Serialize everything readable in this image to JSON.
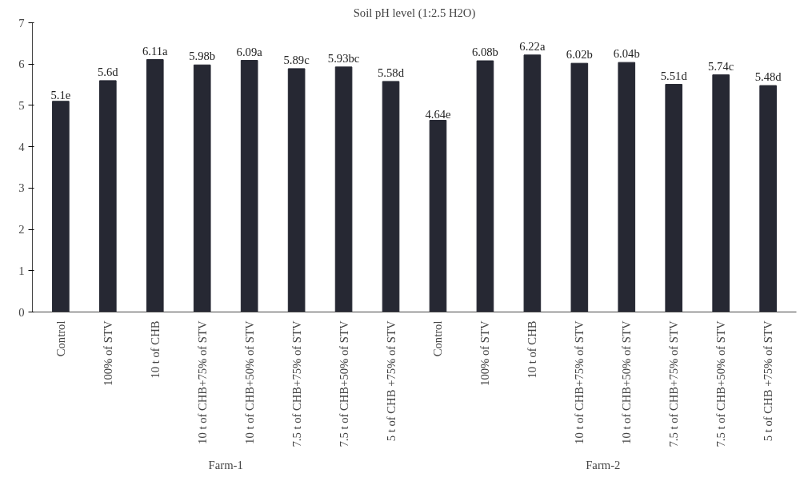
{
  "chart_data": {
    "type": "bar",
    "title": "Soil pH level (1:2.5 H2O)",
    "categories": [
      "Control",
      "100% of STV",
      "10 t of CHB",
      "10 t of CHB+75% of STV",
      "10 t of CHB+50% of STV",
      "7.5 t of CHB+75% of STV",
      "7.5 t of CHB+50% of STV",
      "5 t of CHB +75% of STV",
      "Control",
      "100% of STV",
      "10 t of CHB",
      "10 t of CHB+75% of STV",
      "10 t of CHB+50% of STV",
      "7.5 t of CHB+75% of STV",
      "7.5 t of CHB+50% of STV",
      "5 t of CHB +75% of STV"
    ],
    "values": [
      5.1,
      5.6,
      6.11,
      5.98,
      6.09,
      5.89,
      5.93,
      5.58,
      4.64,
      6.08,
      6.22,
      6.02,
      6.04,
      5.51,
      5.74,
      5.48
    ],
    "value_labels": [
      "5.1e",
      "5.6d",
      "6.11a",
      "5.98b",
      "6.09a",
      "5.89c",
      "5.93bc",
      "5.58d",
      "4.64e",
      "6.08b",
      "6.22a",
      "6.02b",
      "6.04b",
      "5.51d",
      "5.74c",
      "5.48d"
    ],
    "color": "#262833",
    "ylim": [
      0,
      7
    ],
    "yticks": [
      0,
      1,
      2,
      3,
      4,
      5,
      6,
      7
    ],
    "grid": false,
    "annotations": [
      "Farm-1",
      "Farm-2"
    ]
  }
}
